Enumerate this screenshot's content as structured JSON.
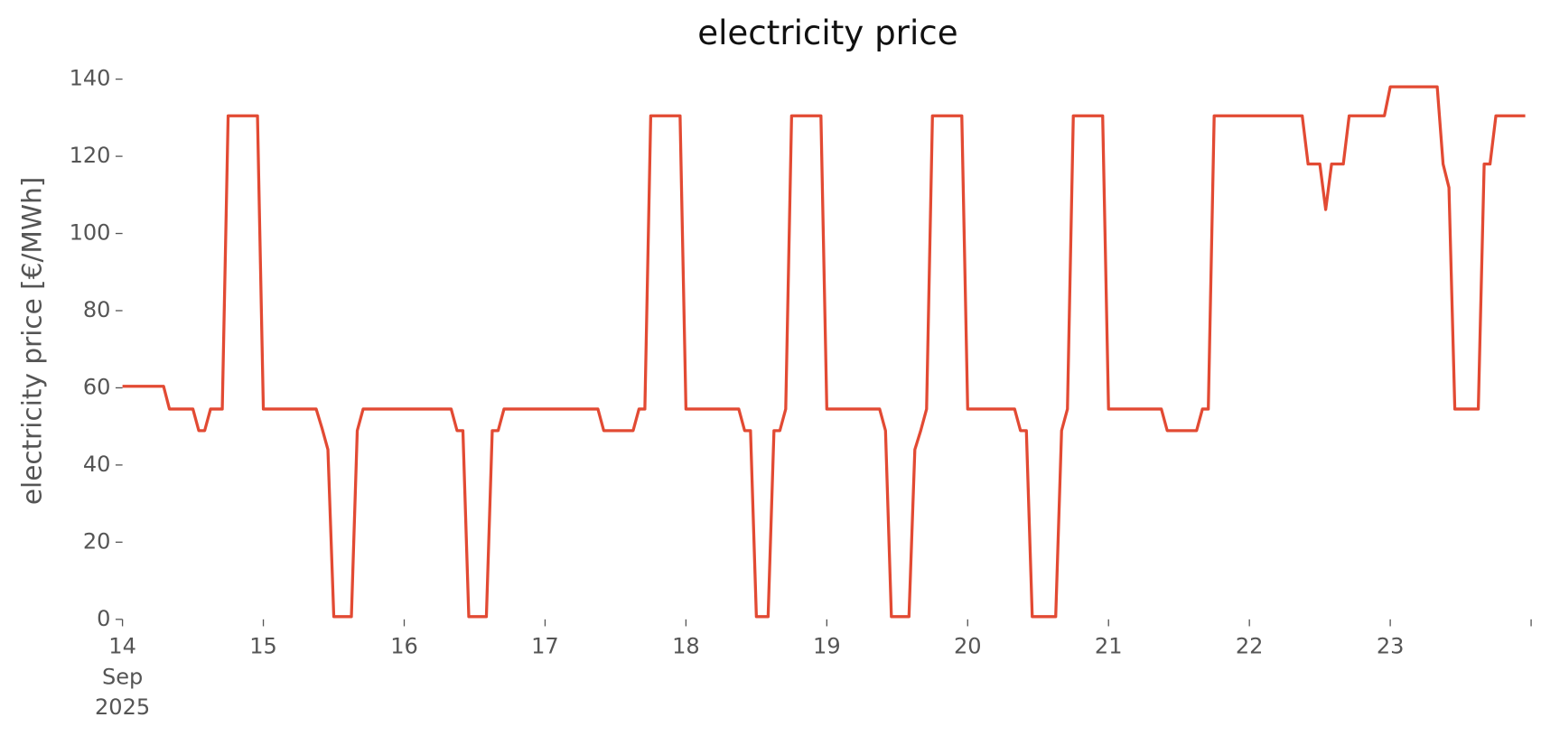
{
  "chart_data": {
    "type": "line",
    "title": "electricity price",
    "ylabel": "electricity price [€/MWh]",
    "color": "#e24a33",
    "grid": false,
    "xlim": [
      "2025-09-14 00:00",
      "2025-09-24 00:00"
    ],
    "xticks": [
      {
        "value": "2025-09-14 00:00",
        "label": "14\nSep\n2025"
      },
      {
        "value": "2025-09-15 00:00",
        "label": "15"
      },
      {
        "value": "2025-09-16 00:00",
        "label": "16"
      },
      {
        "value": "2025-09-17 00:00",
        "label": "17"
      },
      {
        "value": "2025-09-18 00:00",
        "label": "18"
      },
      {
        "value": "2025-09-19 00:00",
        "label": "19"
      },
      {
        "value": "2025-09-20 00:00",
        "label": "20"
      },
      {
        "value": "2025-09-21 00:00",
        "label": "21"
      },
      {
        "value": "2025-09-22 00:00",
        "label": "22"
      },
      {
        "value": "2025-09-23 00:00",
        "label": "23"
      }
    ],
    "ylim": [
      0,
      140
    ],
    "yticks": [
      0,
      20,
      40,
      60,
      80,
      100,
      120,
      140
    ],
    "x": [
      "2025-09-14 00:00",
      "2025-09-14 01:00",
      "2025-09-14 02:00",
      "2025-09-14 03:00",
      "2025-09-14 04:00",
      "2025-09-14 05:00",
      "2025-09-14 06:00",
      "2025-09-14 07:00",
      "2025-09-14 08:00",
      "2025-09-14 09:00",
      "2025-09-14 10:00",
      "2025-09-14 11:00",
      "2025-09-14 12:00",
      "2025-09-14 13:00",
      "2025-09-14 14:00",
      "2025-09-14 15:00",
      "2025-09-14 16:00",
      "2025-09-14 17:00",
      "2025-09-14 18:00",
      "2025-09-14 19:00",
      "2025-09-14 20:00",
      "2025-09-14 21:00",
      "2025-09-14 22:00",
      "2025-09-14 23:00",
      "2025-09-15 00:00",
      "2025-09-15 01:00",
      "2025-09-15 02:00",
      "2025-09-15 03:00",
      "2025-09-15 04:00",
      "2025-09-15 05:00",
      "2025-09-15 06:00",
      "2025-09-15 07:00",
      "2025-09-15 08:00",
      "2025-09-15 09:00",
      "2025-09-15 10:00",
      "2025-09-15 11:00",
      "2025-09-15 12:00",
      "2025-09-15 13:00",
      "2025-09-15 14:00",
      "2025-09-15 15:00",
      "2025-09-15 16:00",
      "2025-09-15 17:00",
      "2025-09-15 18:00",
      "2025-09-15 19:00",
      "2025-09-15 20:00",
      "2025-09-15 21:00",
      "2025-09-15 22:00",
      "2025-09-15 23:00",
      "2025-09-16 00:00",
      "2025-09-16 01:00",
      "2025-09-16 02:00",
      "2025-09-16 03:00",
      "2025-09-16 04:00",
      "2025-09-16 05:00",
      "2025-09-16 06:00",
      "2025-09-16 07:00",
      "2025-09-16 08:00",
      "2025-09-16 09:00",
      "2025-09-16 10:00",
      "2025-09-16 11:00",
      "2025-09-16 12:00",
      "2025-09-16 13:00",
      "2025-09-16 14:00",
      "2025-09-16 15:00",
      "2025-09-16 16:00",
      "2025-09-16 17:00",
      "2025-09-16 18:00",
      "2025-09-16 19:00",
      "2025-09-16 20:00",
      "2025-09-16 21:00",
      "2025-09-16 22:00",
      "2025-09-16 23:00",
      "2025-09-17 00:00",
      "2025-09-17 01:00",
      "2025-09-17 02:00",
      "2025-09-17 03:00",
      "2025-09-17 04:00",
      "2025-09-17 05:00",
      "2025-09-17 06:00",
      "2025-09-17 07:00",
      "2025-09-17 08:00",
      "2025-09-17 09:00",
      "2025-09-17 10:00",
      "2025-09-17 11:00",
      "2025-09-17 12:00",
      "2025-09-17 13:00",
      "2025-09-17 14:00",
      "2025-09-17 15:00",
      "2025-09-17 16:00",
      "2025-09-17 17:00",
      "2025-09-17 18:00",
      "2025-09-17 19:00",
      "2025-09-17 20:00",
      "2025-09-17 21:00",
      "2025-09-17 22:00",
      "2025-09-17 23:00",
      "2025-09-18 00:00",
      "2025-09-18 01:00",
      "2025-09-18 02:00",
      "2025-09-18 03:00",
      "2025-09-18 04:00",
      "2025-09-18 05:00",
      "2025-09-18 06:00",
      "2025-09-18 07:00",
      "2025-09-18 08:00",
      "2025-09-18 09:00",
      "2025-09-18 10:00",
      "2025-09-18 11:00",
      "2025-09-18 12:00",
      "2025-09-18 13:00",
      "2025-09-18 14:00",
      "2025-09-18 15:00",
      "2025-09-18 16:00",
      "2025-09-18 17:00",
      "2025-09-18 18:00",
      "2025-09-18 19:00",
      "2025-09-18 20:00",
      "2025-09-18 21:00",
      "2025-09-18 22:00",
      "2025-09-18 23:00",
      "2025-09-19 00:00",
      "2025-09-19 01:00",
      "2025-09-19 02:00",
      "2025-09-19 03:00",
      "2025-09-19 04:00",
      "2025-09-19 05:00",
      "2025-09-19 06:00",
      "2025-09-19 07:00",
      "2025-09-19 08:00",
      "2025-09-19 09:00",
      "2025-09-19 10:00",
      "2025-09-19 11:00",
      "2025-09-19 12:00",
      "2025-09-19 13:00",
      "2025-09-19 14:00",
      "2025-09-19 15:00",
      "2025-09-19 16:00",
      "2025-09-19 17:00",
      "2025-09-19 18:00",
      "2025-09-19 19:00",
      "2025-09-19 20:00",
      "2025-09-19 21:00",
      "2025-09-19 22:00",
      "2025-09-19 23:00",
      "2025-09-20 00:00",
      "2025-09-20 01:00",
      "2025-09-20 02:00",
      "2025-09-20 03:00",
      "2025-09-20 04:00",
      "2025-09-20 05:00",
      "2025-09-20 06:00",
      "2025-09-20 07:00",
      "2025-09-20 08:00",
      "2025-09-20 09:00",
      "2025-09-20 10:00",
      "2025-09-20 11:00",
      "2025-09-20 12:00",
      "2025-09-20 13:00",
      "2025-09-20 14:00",
      "2025-09-20 15:00",
      "2025-09-20 16:00",
      "2025-09-20 17:00",
      "2025-09-20 18:00",
      "2025-09-20 19:00",
      "2025-09-20 20:00",
      "2025-09-20 21:00",
      "2025-09-20 22:00",
      "2025-09-20 23:00",
      "2025-09-21 00:00",
      "2025-09-21 01:00",
      "2025-09-21 02:00",
      "2025-09-21 03:00",
      "2025-09-21 04:00",
      "2025-09-21 05:00",
      "2025-09-21 06:00",
      "2025-09-21 07:00",
      "2025-09-21 08:00",
      "2025-09-21 09:00",
      "2025-09-21 10:00",
      "2025-09-21 11:00",
      "2025-09-21 12:00",
      "2025-09-21 13:00",
      "2025-09-21 14:00",
      "2025-09-21 15:00",
      "2025-09-21 16:00",
      "2025-09-21 17:00",
      "2025-09-21 18:00",
      "2025-09-21 19:00",
      "2025-09-21 20:00",
      "2025-09-21 21:00",
      "2025-09-21 22:00",
      "2025-09-21 23:00",
      "2025-09-22 00:00",
      "2025-09-22 01:00",
      "2025-09-22 02:00",
      "2025-09-22 03:00",
      "2025-09-22 04:00",
      "2025-09-22 05:00",
      "2025-09-22 06:00",
      "2025-09-22 07:00",
      "2025-09-22 08:00",
      "2025-09-22 09:00",
      "2025-09-22 10:00",
      "2025-09-22 11:00",
      "2025-09-22 12:00",
      "2025-09-22 13:00",
      "2025-09-22 14:00",
      "2025-09-22 15:00",
      "2025-09-22 16:00",
      "2025-09-22 17:00",
      "2025-09-22 18:00",
      "2025-09-22 19:00",
      "2025-09-22 20:00",
      "2025-09-22 21:00",
      "2025-09-22 22:00",
      "2025-09-22 23:00",
      "2025-09-23 00:00",
      "2025-09-23 01:00",
      "2025-09-23 02:00",
      "2025-09-23 03:00",
      "2025-09-23 04:00",
      "2025-09-23 05:00",
      "2025-09-23 06:00",
      "2025-09-23 07:00",
      "2025-09-23 08:00",
      "2025-09-23 09:00",
      "2025-09-23 10:00",
      "2025-09-23 11:00",
      "2025-09-23 12:00",
      "2025-09-23 13:00",
      "2025-09-23 14:00",
      "2025-09-23 15:00",
      "2025-09-23 16:00",
      "2025-09-23 17:00",
      "2025-09-23 18:00",
      "2025-09-23 19:00",
      "2025-09-23 20:00",
      "2025-09-23 21:00",
      "2025-09-23 22:00",
      "2025-09-23 23:00"
    ],
    "values": [
      60.4,
      60.4,
      60.4,
      60.4,
      60.4,
      60.4,
      60.4,
      60.4,
      54.5,
      54.5,
      54.5,
      54.5,
      54.5,
      48.9,
      48.9,
      54.5,
      54.5,
      54.5,
      130.5,
      130.5,
      130.5,
      130.5,
      130.5,
      130.5,
      54.5,
      54.5,
      54.5,
      54.5,
      54.5,
      54.5,
      54.5,
      54.5,
      54.5,
      54.5,
      49.5,
      44,
      0.7,
      0.7,
      0.7,
      0.7,
      48.9,
      54.5,
      54.5,
      54.5,
      54.5,
      54.5,
      54.5,
      54.5,
      54.5,
      54.5,
      54.5,
      54.5,
      54.5,
      54.5,
      54.5,
      54.5,
      54.5,
      48.9,
      48.9,
      0.7,
      0.7,
      0.7,
      0.7,
      48.9,
      48.9,
      54.5,
      54.5,
      54.5,
      54.5,
      54.5,
      54.5,
      54.5,
      54.5,
      54.5,
      54.5,
      54.5,
      54.5,
      54.5,
      54.5,
      54.5,
      54.5,
      54.5,
      48.9,
      48.9,
      48.9,
      48.9,
      48.9,
      48.9,
      54.5,
      54.5,
      130.5,
      130.5,
      130.5,
      130.5,
      130.5,
      130.5,
      54.5,
      54.5,
      54.5,
      54.5,
      54.5,
      54.5,
      54.5,
      54.5,
      54.5,
      54.5,
      48.9,
      48.9,
      0.7,
      0.7,
      0.7,
      48.9,
      48.9,
      54.5,
      130.5,
      130.5,
      130.5,
      130.5,
      130.5,
      130.5,
      54.5,
      54.5,
      54.5,
      54.5,
      54.5,
      54.5,
      54.5,
      54.5,
      54.5,
      54.5,
      48.9,
      0.7,
      0.7,
      0.7,
      0.7,
      44,
      48.9,
      54.5,
      130.5,
      130.5,
      130.5,
      130.5,
      130.5,
      130.5,
      54.5,
      54.5,
      54.5,
      54.5,
      54.5,
      54.5,
      54.5,
      54.5,
      54.5,
      48.9,
      48.9,
      0.7,
      0.7,
      0.7,
      0.7,
      0.7,
      48.9,
      54.5,
      130.5,
      130.5,
      130.5,
      130.5,
      130.5,
      130.5,
      54.5,
      54.5,
      54.5,
      54.5,
      54.5,
      54.5,
      54.5,
      54.5,
      54.5,
      54.5,
      48.9,
      48.9,
      48.9,
      48.9,
      48.9,
      48.9,
      54.5,
      54.5,
      130.5,
      130.5,
      130.5,
      130.5,
      130.5,
      130.5,
      130.5,
      130.5,
      130.5,
      130.5,
      130.5,
      130.5,
      130.5,
      130.5,
      130.5,
      130.5,
      118,
      118,
      118,
      106.2,
      118,
      118,
      118,
      130.5,
      130.5,
      130.5,
      130.5,
      130.5,
      130.5,
      130.5,
      138,
      138,
      138,
      138,
      138,
      138,
      138,
      138,
      138,
      118,
      111.9,
      54.5,
      54.5,
      54.5,
      54.5,
      54.5,
      118,
      118,
      130.5,
      130.5,
      130.5,
      130.5,
      130.5,
      130.5
    ]
  }
}
